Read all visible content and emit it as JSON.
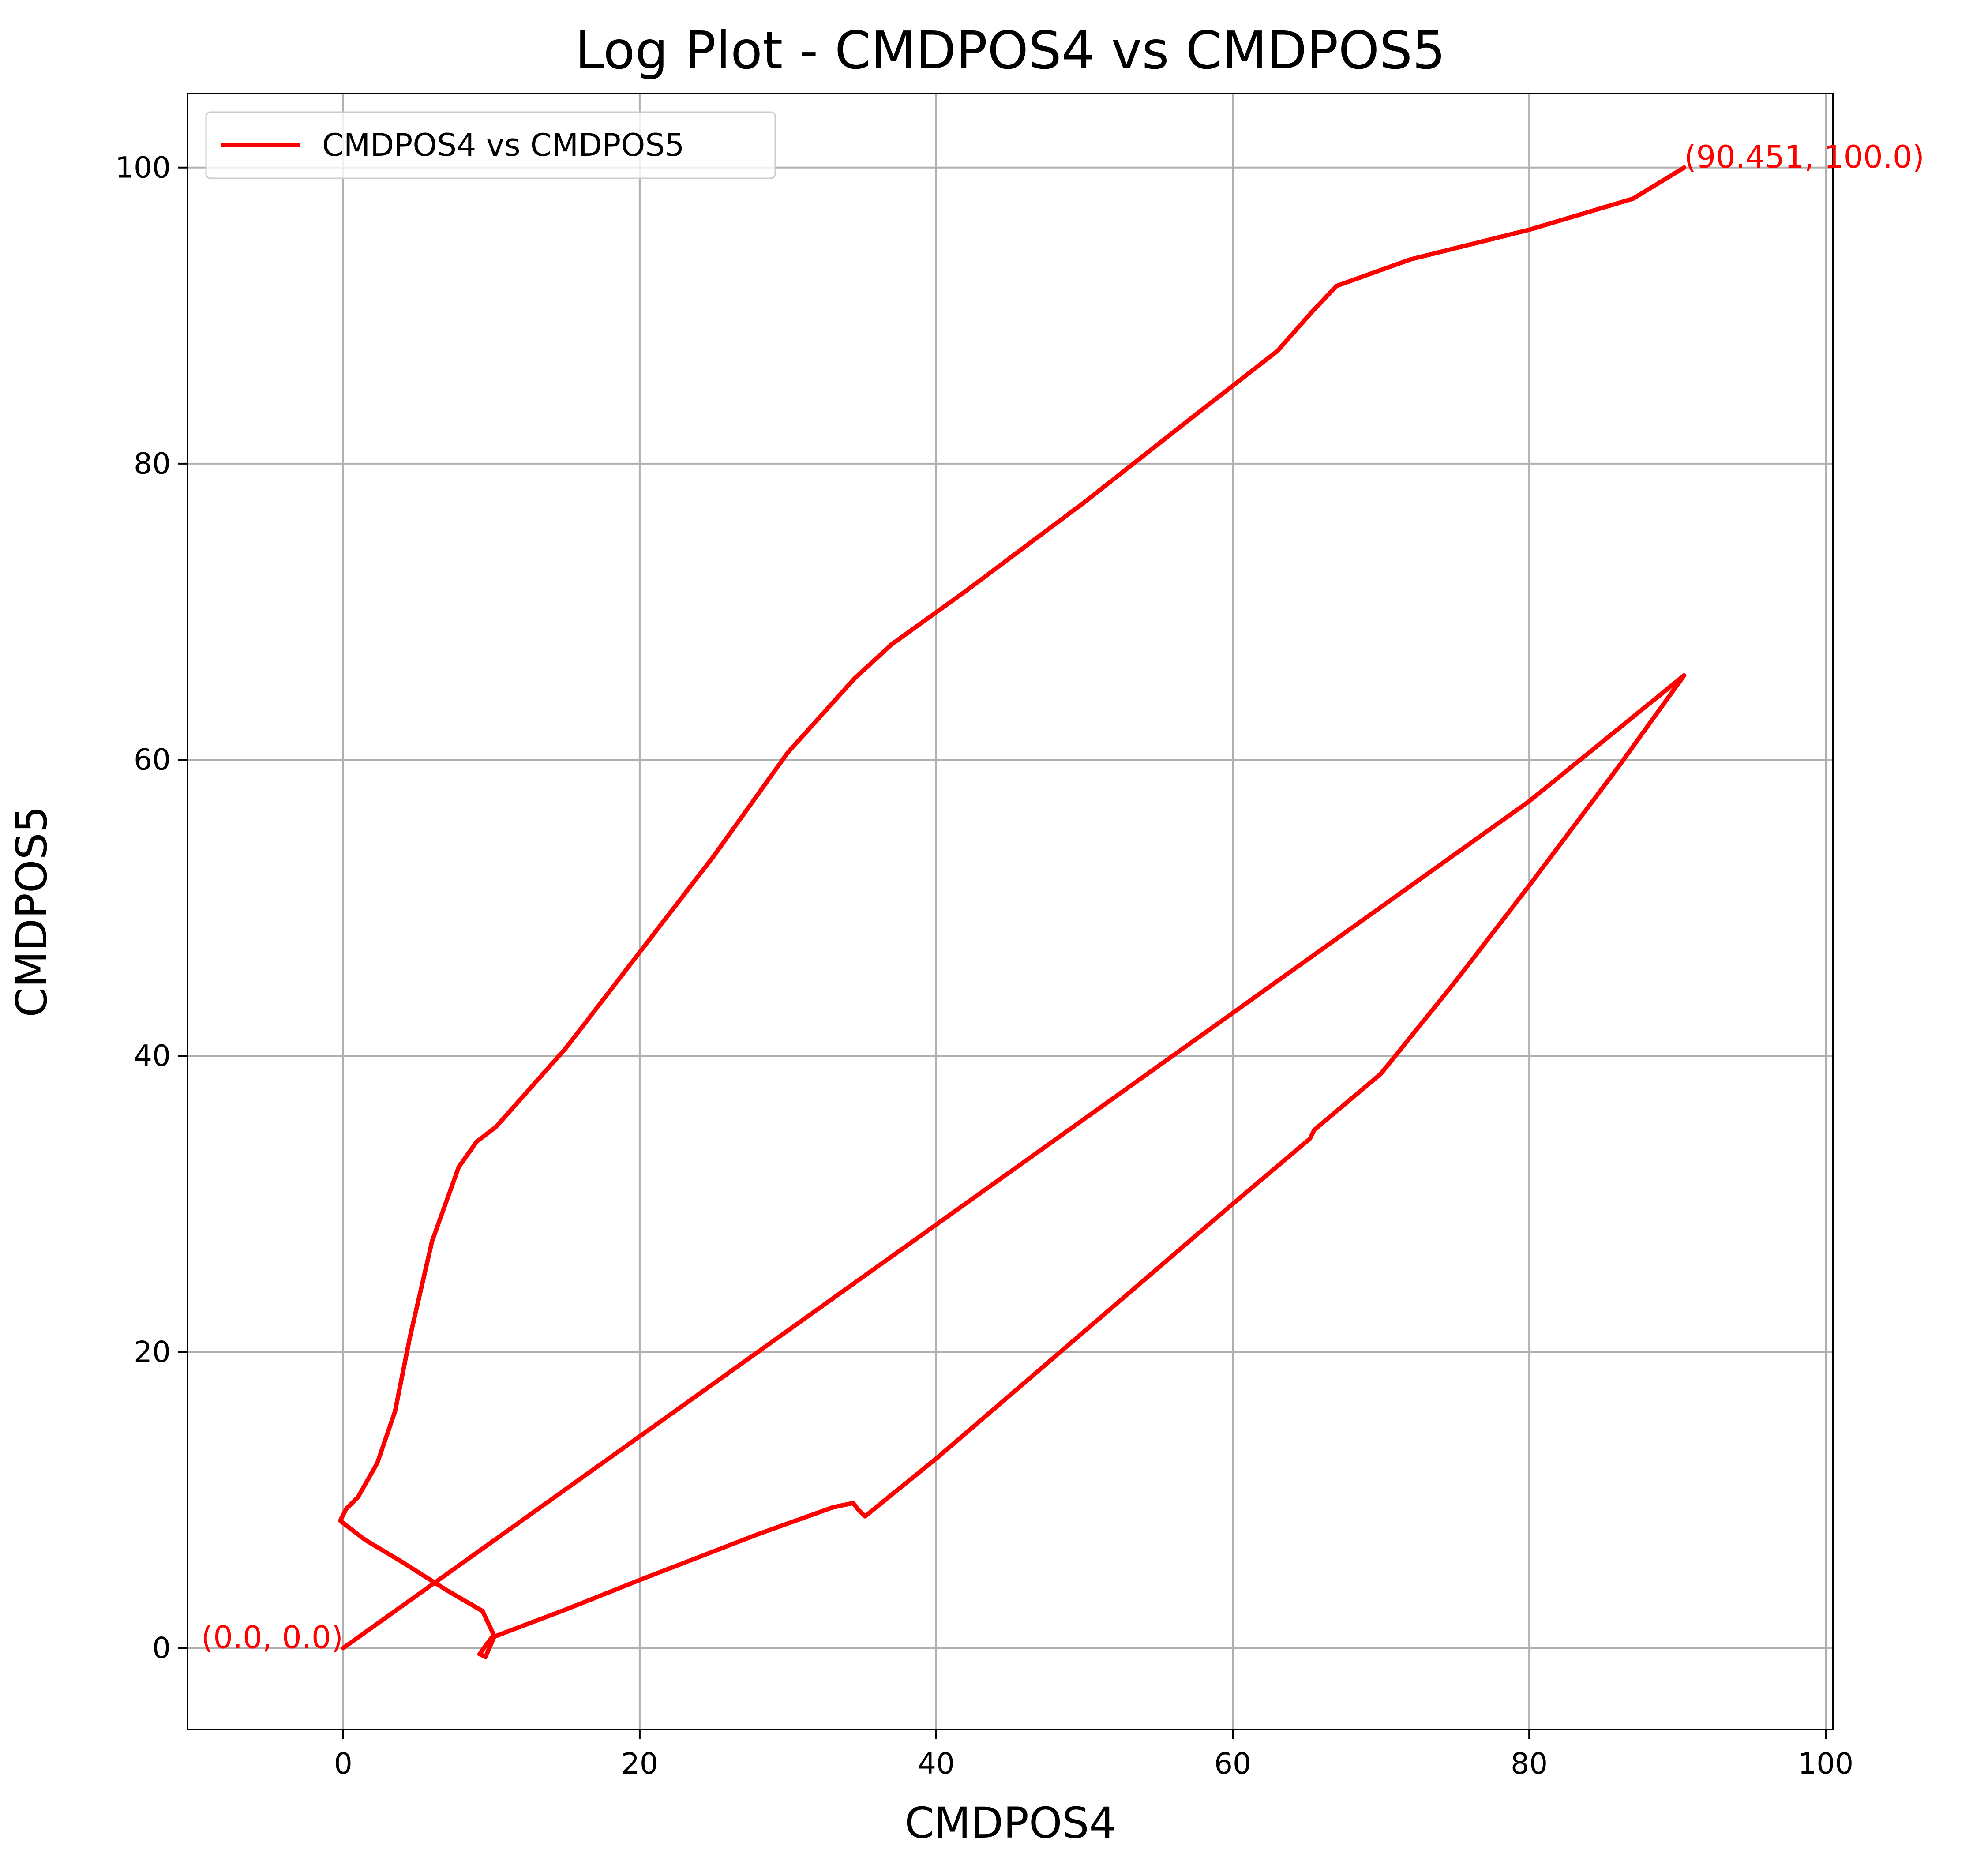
{
  "chart_data": {
    "type": "line",
    "title": "Log Plot - CMDPOS4 vs CMDPOS5",
    "xlabel": "CMDPOS4",
    "ylabel": "CMDPOS5",
    "xlim": [
      -10.5,
      100.5
    ],
    "ylim": [
      -5.5,
      105
    ],
    "xticks": [
      0,
      20,
      40,
      60,
      80,
      100
    ],
    "yticks": [
      0,
      20,
      40,
      60,
      80,
      100
    ],
    "grid": true,
    "legend_position": "top-left",
    "colors": {
      "series": "#ff0000",
      "grid": "#b0b0b0",
      "axes": "#000000"
    },
    "series": [
      {
        "name": "CMDPOS4 vs CMDPOS5",
        "color": "#ff0000",
        "x": [
          0.0,
          10.0,
          20.0,
          30.0,
          40.0,
          50.0,
          60.0,
          70.0,
          80.0,
          90.451,
          86.0,
          80.0,
          75.0,
          70.0,
          65.5,
          65.2,
          60.0,
          50.0,
          40.0,
          35.2,
          34.7,
          34.4,
          33.0,
          28.0,
          20.0,
          15.0,
          10.0,
          9.2,
          9.6,
          10.2,
          9.4,
          7.0,
          4.0,
          1.5,
          -0.2,
          0.2,
          1.0,
          2.3,
          3.5,
          4.5,
          6.0,
          7.8,
          9.0,
          10.3,
          15.0,
          20.0,
          25.0,
          30.0,
          34.5,
          37.0,
          42.0,
          50.0,
          58.0,
          63.0,
          65.3,
          67.0,
          72.0,
          80.0,
          87.0,
          90.451
        ],
        "y": [
          0.0,
          7.15,
          14.3,
          21.45,
          28.6,
          35.75,
          42.9,
          50.05,
          57.2,
          65.7,
          59.5,
          51.5,
          45.0,
          38.8,
          35.0,
          34.4,
          30.0,
          21.4,
          12.8,
          8.9,
          9.4,
          9.8,
          9.5,
          7.7,
          4.6,
          2.6,
          0.7,
          -0.4,
          -0.6,
          0.8,
          2.5,
          3.9,
          5.8,
          7.3,
          8.6,
          9.4,
          10.2,
          12.5,
          16.0,
          21.0,
          27.5,
          32.5,
          34.2,
          35.2,
          40.5,
          47.0,
          53.5,
          60.5,
          65.5,
          67.8,
          71.4,
          77.4,
          83.7,
          87.6,
          90.2,
          92.0,
          93.8,
          95.8,
          97.9,
          100.0
        ]
      }
    ],
    "annotations": [
      {
        "text": "(0.0, 0.0)",
        "x": 0.0,
        "y": 0.0,
        "align": "end"
      },
      {
        "text": "(90.451, 100.0)",
        "x": 90.451,
        "y": 100.0,
        "align": "start"
      }
    ]
  }
}
